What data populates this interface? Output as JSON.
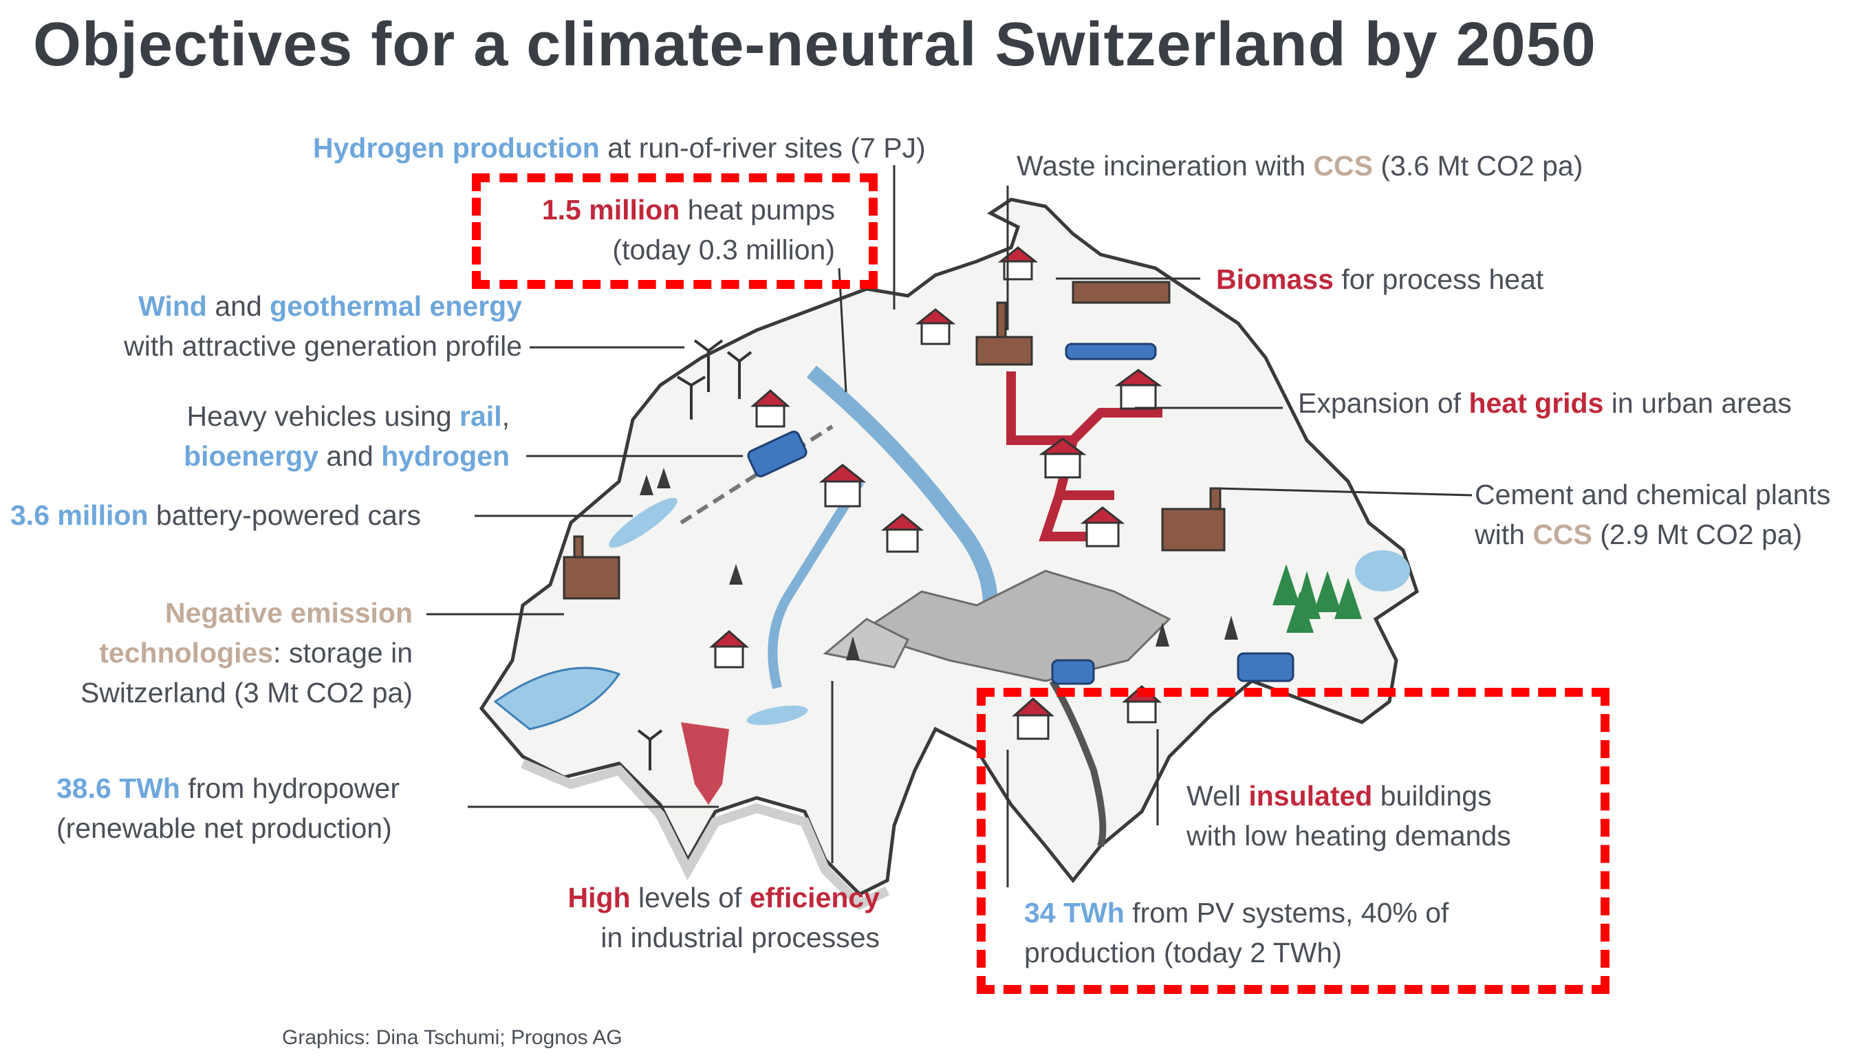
{
  "title": "Objectives for a climate-neutral Switzerland by 2050",
  "labels": {
    "hydrogen": {
      "highlight": "Hydrogen production",
      "rest": " at run-of-river sites (7 PJ)"
    },
    "heat_pumps": {
      "highlight": "1.5 million",
      "rest": " heat pumps",
      "line2": "(today 0.3 million)"
    },
    "wind": {
      "highlight1": "Wind",
      "mid": " and ",
      "highlight2": "geothermal energy",
      "line2": "with attractive generation profile"
    },
    "heavy_vehicles": {
      "line1a": "Heavy vehicles using ",
      "highlight1": "rail",
      "line1b": ",",
      "highlight2": "bioenergy",
      "mid": " and ",
      "highlight3": "hydrogen"
    },
    "cars": {
      "highlight": "3.6 million",
      "rest": " battery-powered cars"
    },
    "negative_emission": {
      "highlight1": "Negative emission",
      "highlight2": "technologies",
      "rest2": ":  storage in",
      "line3": "Switzerland (3 Mt CO2 pa)"
    },
    "hydropower": {
      "highlight": "38.6 TWh",
      "rest": " from hydropower",
      "line2": "(renewable net production)"
    },
    "efficiency": {
      "highlight1": "High",
      "mid": " levels of ",
      "highlight2": "efficiency",
      "line2": "in industrial processes"
    },
    "waste": {
      "text": "Waste incineration with ",
      "highlight": "CCS",
      "rest": " (3.6 Mt CO2 pa)"
    },
    "biomass": {
      "highlight": "Biomass",
      "rest": " for process heat"
    },
    "heat_grids": {
      "text": "Expansion of ",
      "highlight": "heat grids",
      "rest": " in urban areas"
    },
    "cement": {
      "line1": "Cement and chemical plants",
      "text2": "with ",
      "highlight": "CCS",
      "rest2": " (2.9 Mt CO2 pa)"
    },
    "insulated": {
      "text": "Well ",
      "highlight": "insulated",
      "rest": " buildings",
      "line2": "with low heating demands"
    },
    "pv": {
      "highlight": "34 TWh",
      "rest": " from PV systems, 40% of",
      "line2": "production (today 2 TWh)"
    }
  },
  "credit": "Graphics: Dina Tschumi; Prognos AG",
  "colors": {
    "blue": "#6ea7dc",
    "red": "#c0283b",
    "tan": "#c2ab9a",
    "highlight_box": "#ff0000"
  }
}
